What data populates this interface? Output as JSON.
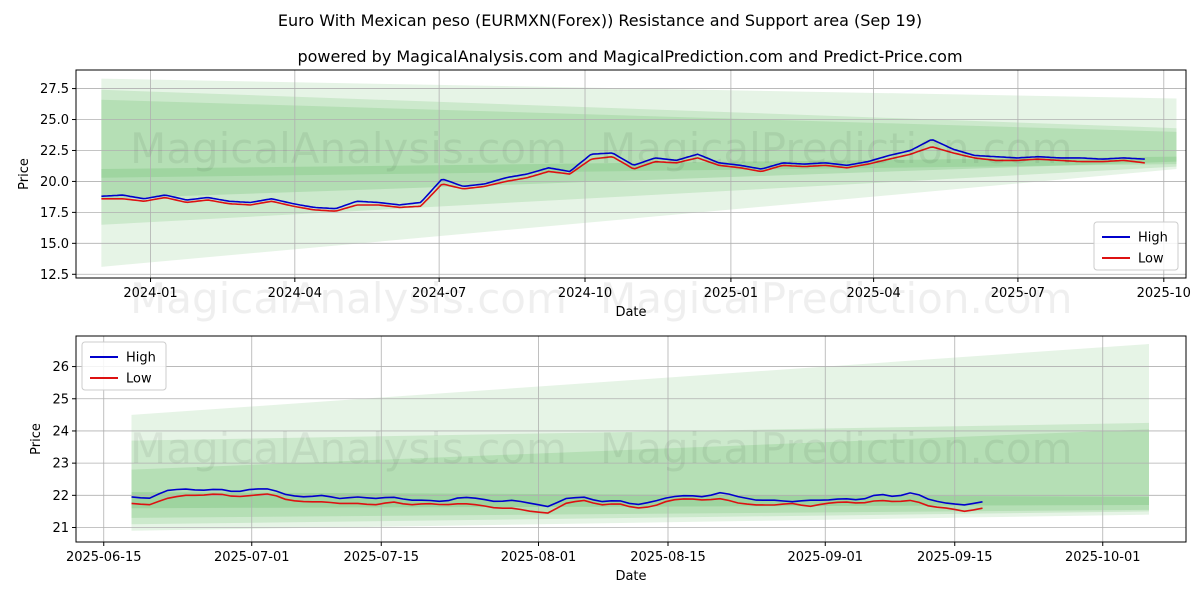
{
  "figure": {
    "title": "Euro With Mexican peso (EURMXN(Forex)) Resistance and Support area (Sep 19)",
    "subtitle": "powered by MagicalAnalysis.com and MagicalPrediction.com and Predict-Price.com",
    "watermarks": [
      "MagicalAnalysis.com",
      "MagicalPrediction.com",
      "MagicalAnalysis.com",
      "MagicalPrediction.com",
      "MagicalAnalysis.com",
      "MagicalPrediction.com"
    ]
  },
  "colors": {
    "high": "#0000cc",
    "low": "#dd1111",
    "band": "#4caf50",
    "grid": "#b0b0b0"
  },
  "chart_data": [
    {
      "type": "line",
      "xlabel": "Date",
      "ylabel": "Price",
      "x_start": "2023-12-01",
      "x_end": "2025-09-19",
      "xlim": [
        "2023-11-15",
        "2025-10-15"
      ],
      "ylim": [
        12.2,
        29.0
      ],
      "xticks": [
        "2024-01",
        "2024-04",
        "2024-07",
        "2024-10",
        "2025-01",
        "2025-04",
        "2025-07",
        "2025-10"
      ],
      "xtick_dates": [
        "2024-01-01",
        "2024-04-01",
        "2024-07-01",
        "2024-10-01",
        "2025-01-01",
        "2025-04-01",
        "2025-07-01",
        "2025-10-01"
      ],
      "yticks": [
        "12.5",
        "15.0",
        "17.5",
        "20.0",
        "22.5",
        "25.0",
        "27.5"
      ],
      "legend": [
        "High",
        "Low"
      ],
      "legend_position": "lower-right",
      "high_anchors": [
        18.8,
        18.9,
        18.6,
        18.9,
        18.5,
        18.7,
        18.4,
        18.3,
        18.6,
        18.2,
        17.9,
        17.8,
        18.4,
        18.3,
        18.1,
        18.3,
        20.2,
        19.6,
        19.8,
        20.3,
        20.6,
        21.1,
        20.8,
        22.2,
        22.3,
        21.3,
        21.9,
        21.7,
        22.2,
        21.5,
        21.3,
        21.0,
        21.5,
        21.4,
        21.5,
        21.3,
        21.6,
        22.1,
        22.5,
        23.4,
        22.6,
        22.1,
        22.0,
        21.9,
        22.0,
        21.9,
        21.9,
        21.8,
        21.9,
        21.8
      ],
      "low_anchors": [
        18.6,
        18.6,
        18.4,
        18.7,
        18.3,
        18.5,
        18.2,
        18.1,
        18.4,
        18.0,
        17.7,
        17.6,
        18.1,
        18.1,
        17.9,
        18.0,
        19.8,
        19.4,
        19.6,
        20.0,
        20.3,
        20.8,
        20.6,
        21.8,
        22.0,
        21.0,
        21.6,
        21.5,
        21.9,
        21.3,
        21.1,
        20.8,
        21.3,
        21.2,
        21.3,
        21.1,
        21.4,
        21.8,
        22.2,
        22.8,
        22.3,
        21.9,
        21.7,
        21.7,
        21.8,
        21.7,
        21.6,
        21.6,
        21.7,
        21.5
      ],
      "bands": [
        {
          "start": [
            13.1,
            28.3
          ],
          "end": [
            21.0,
            26.7
          ],
          "opacity": 0.14
        },
        {
          "start": [
            16.5,
            27.4
          ],
          "end": [
            21.2,
            24.3
          ],
          "opacity": 0.17
        },
        {
          "start": [
            20.3,
            26.6
          ],
          "end": [
            21.4,
            24.0
          ],
          "opacity": 0.18
        },
        {
          "start": [
            18.6,
            21.0
          ],
          "end": [
            21.6,
            22.0
          ],
          "opacity": 0.2
        }
      ]
    },
    {
      "type": "line",
      "xlabel": "Date",
      "ylabel": "Price",
      "x_start": "2025-06-18",
      "x_end": "2025-09-18",
      "xlim": [
        "2025-06-12",
        "2025-10-10"
      ],
      "ylim": [
        20.55,
        26.95
      ],
      "xticks": [
        "2025-06-15",
        "2025-07-01",
        "2025-07-15",
        "2025-08-01",
        "2025-08-15",
        "2025-09-01",
        "2025-09-15",
        "2025-10-01"
      ],
      "xtick_dates": [
        "2025-06-15",
        "2025-07-01",
        "2025-07-15",
        "2025-08-01",
        "2025-08-15",
        "2025-09-01",
        "2025-09-15",
        "2025-10-01"
      ],
      "yticks": [
        "21",
        "22",
        "23",
        "24",
        "25",
        "26"
      ],
      "legend": [
        "High",
        "Low"
      ],
      "legend_position": "upper-left",
      "high_anchors": [
        21.95,
        21.9,
        22.15,
        22.2,
        22.15,
        22.2,
        22.1,
        22.2,
        22.2,
        22.0,
        21.95,
        22.0,
        21.9,
        21.95,
        21.9,
        21.95,
        21.85,
        21.85,
        21.8,
        21.95,
        21.9,
        21.8,
        21.85,
        21.75,
        21.65,
        21.9,
        21.95,
        21.8,
        21.85,
        21.7,
        21.8,
        21.95,
        22.0,
        21.95,
        22.1,
        21.95,
        21.85,
        21.85,
        21.8,
        21.85,
        21.85,
        21.9,
        21.85,
        22.05,
        21.95,
        22.1,
        21.85,
        21.75,
        21.7,
        21.8
      ],
      "low_anchors": [
        21.75,
        21.7,
        21.9,
        22.0,
        22.0,
        22.05,
        21.95,
        22.0,
        22.05,
        21.85,
        21.8,
        21.8,
        21.75,
        21.75,
        21.7,
        21.8,
        21.7,
        21.75,
        21.7,
        21.75,
        21.7,
        21.6,
        21.6,
        21.5,
        21.45,
        21.75,
        21.85,
        21.7,
        21.75,
        21.6,
        21.65,
        21.85,
        21.9,
        21.85,
        21.9,
        21.75,
        21.7,
        21.7,
        21.75,
        21.65,
        21.75,
        21.8,
        21.75,
        21.85,
        21.8,
        21.85,
        21.65,
        21.6,
        21.5,
        21.6
      ],
      "bands": [
        {
          "start": [
            20.9,
            24.5
          ],
          "end": [
            21.4,
            26.7
          ],
          "opacity": 0.14
        },
        {
          "start": [
            21.1,
            23.7
          ],
          "end": [
            21.5,
            24.25
          ],
          "opacity": 0.17
        },
        {
          "start": [
            21.3,
            22.8
          ],
          "end": [
            21.55,
            24.05
          ],
          "opacity": 0.18
        },
        {
          "start": [
            21.6,
            22.1
          ],
          "end": [
            21.7,
            21.95
          ],
          "opacity": 0.22
        }
      ]
    }
  ]
}
